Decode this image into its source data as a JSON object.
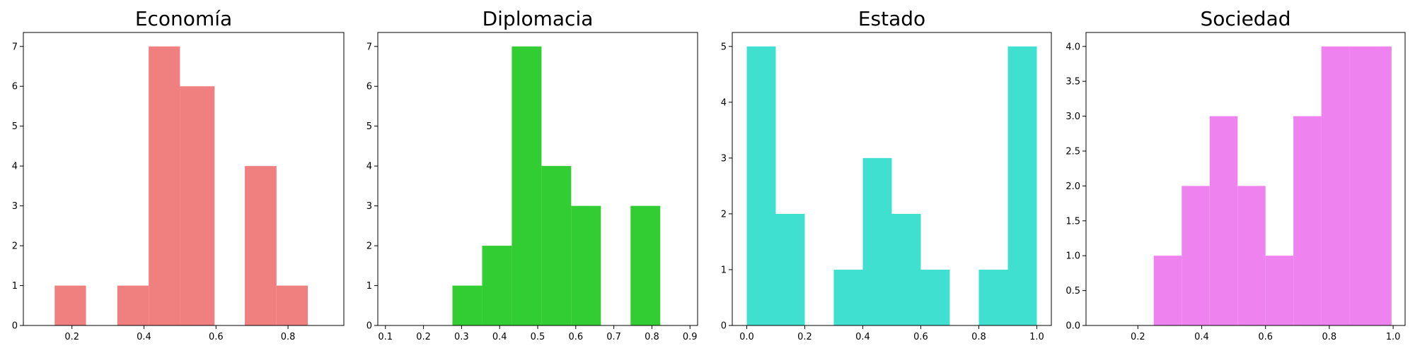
{
  "chart_data": [
    {
      "type": "bar",
      "title": "Economía",
      "color": "#f08080",
      "xlim": [
        0.065,
        0.955
      ],
      "ylim": [
        0,
        7.35
      ],
      "xticks": [
        0.2,
        0.4,
        0.6,
        0.8
      ],
      "yticks": [
        0,
        1,
        2,
        3,
        4,
        5,
        6,
        7
      ],
      "bins": [
        {
          "x0": 0.152,
          "x1": 0.239,
          "count": 1
        },
        {
          "x0": 0.239,
          "x1": 0.326,
          "count": 0
        },
        {
          "x0": 0.326,
          "x1": 0.413,
          "count": 1
        },
        {
          "x0": 0.413,
          "x1": 0.5,
          "count": 7
        },
        {
          "x0": 0.5,
          "x1": 0.596,
          "count": 6
        },
        {
          "x0": 0.596,
          "x1": 0.68,
          "count": 0
        },
        {
          "x0": 0.68,
          "x1": 0.768,
          "count": 4
        },
        {
          "x0": 0.768,
          "x1": 0.855,
          "count": 1
        }
      ]
    },
    {
      "type": "bar",
      "title": "Diplomacia",
      "color": "#32cd32",
      "xlim": [
        0.08,
        0.92
      ],
      "ylim": [
        0,
        7.35
      ],
      "xticks": [
        0.1,
        0.2,
        0.3,
        0.4,
        0.5,
        0.6,
        0.7,
        0.8,
        0.9
      ],
      "yticks": [
        0,
        1,
        2,
        3,
        4,
        5,
        6,
        7
      ],
      "bins": [
        {
          "x0": 0.276,
          "x1": 0.354,
          "count": 1
        },
        {
          "x0": 0.354,
          "x1": 0.432,
          "count": 2
        },
        {
          "x0": 0.432,
          "x1": 0.51,
          "count": 7
        },
        {
          "x0": 0.51,
          "x1": 0.588,
          "count": 4
        },
        {
          "x0": 0.588,
          "x1": 0.666,
          "count": 3
        },
        {
          "x0": 0.666,
          "x1": 0.744,
          "count": 0
        },
        {
          "x0": 0.744,
          "x1": 0.822,
          "count": 3
        }
      ]
    },
    {
      "type": "bar",
      "title": "Estado",
      "color": "#40e0d0",
      "xlim": [
        -0.05,
        1.05
      ],
      "ylim": [
        0,
        5.25
      ],
      "xticks": [
        0.0,
        0.2,
        0.4,
        0.6,
        0.8,
        1.0
      ],
      "yticks": [
        0,
        1,
        2,
        3,
        4,
        5
      ],
      "bins": [
        {
          "x0": 0.0,
          "x1": 0.1,
          "count": 5
        },
        {
          "x0": 0.1,
          "x1": 0.2,
          "count": 2
        },
        {
          "x0": 0.2,
          "x1": 0.3,
          "count": 0
        },
        {
          "x0": 0.3,
          "x1": 0.4,
          "count": 1
        },
        {
          "x0": 0.4,
          "x1": 0.5,
          "count": 3
        },
        {
          "x0": 0.5,
          "x1": 0.6,
          "count": 2
        },
        {
          "x0": 0.6,
          "x1": 0.7,
          "count": 1
        },
        {
          "x0": 0.7,
          "x1": 0.8,
          "count": 0
        },
        {
          "x0": 0.8,
          "x1": 0.9,
          "count": 1
        },
        {
          "x0": 0.9,
          "x1": 1.0,
          "count": 5
        }
      ]
    },
    {
      "type": "bar",
      "title": "Sociedad",
      "color": "#ee82ee",
      "xlim": [
        0.0375,
        1.0375
      ],
      "ylim": [
        0,
        4.2
      ],
      "xticks": [
        0.2,
        0.4,
        0.6,
        0.8,
        1.0
      ],
      "yticks": [
        0.0,
        0.5,
        1.0,
        1.5,
        2.0,
        2.5,
        3.0,
        3.5,
        4.0
      ],
      "bins": [
        {
          "x0": 0.25,
          "x1": 0.3375,
          "count": 1
        },
        {
          "x0": 0.3375,
          "x1": 0.425,
          "count": 2
        },
        {
          "x0": 0.425,
          "x1": 0.5125,
          "count": 3
        },
        {
          "x0": 0.5125,
          "x1": 0.6,
          "count": 2
        },
        {
          "x0": 0.6,
          "x1": 0.6875,
          "count": 1
        },
        {
          "x0": 0.6875,
          "x1": 0.775,
          "count": 3
        },
        {
          "x0": 0.775,
          "x1": 0.8625,
          "count": 4
        },
        {
          "x0": 0.8625,
          "x1": 0.95,
          "count": 4
        },
        {
          "x0": 0.95,
          "x1": 0.995,
          "count": 4
        }
      ]
    }
  ]
}
